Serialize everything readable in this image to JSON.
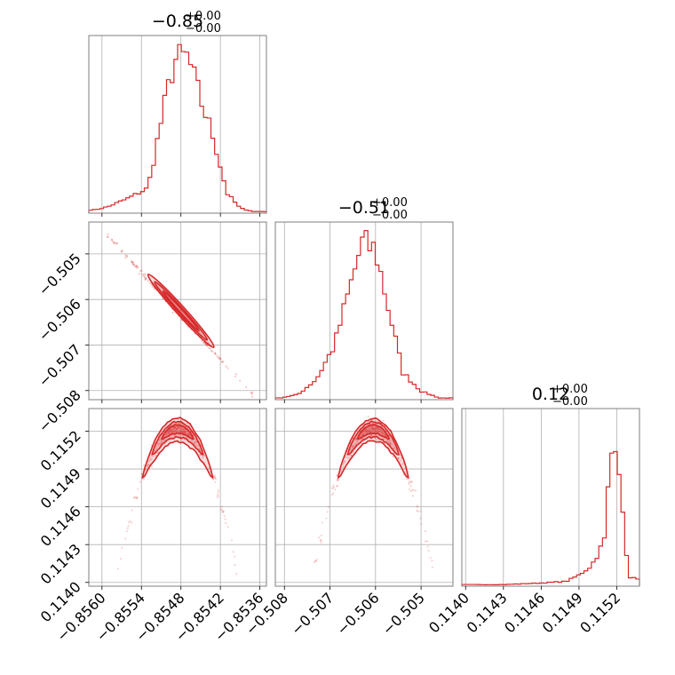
{
  "colors": {
    "series": "#d62728",
    "grid": "#b0b0b0",
    "frame": "#7f7f7f"
  },
  "chart_data": {
    "type": "corner",
    "grid": true,
    "parameters": [
      {
        "title_value": "−0.85",
        "title_plus": "+0.00",
        "title_minus": "−0.00",
        "range": [
          -0.8562,
          -0.8535
        ],
        "ticks": [
          -0.856,
          -0.8554,
          -0.8548,
          -0.8542,
          -0.8536
        ],
        "tick_labels": [
          "−0.8560",
          "−0.8554",
          "−0.8548",
          "−0.8542",
          "−0.8536"
        ]
      },
      {
        "title_value": "−0.51",
        "title_plus": "+0.00",
        "title_minus": "−0.00",
        "range": [
          -0.5082,
          -0.5043
        ],
        "ticks": [
          -0.505,
          -0.506,
          -0.507,
          -0.508
        ],
        "tick_labels": [
          "−0.505",
          "−0.506",
          "−0.507",
          "−0.508"
        ]
      },
      {
        "title_value": "0.12",
        "title_plus": "+0.00",
        "title_minus": "−0.00",
        "range": [
          0.11397,
          0.11538
        ],
        "ticks": [
          0.114,
          0.1143,
          0.1146,
          0.1149,
          0.1152
        ],
        "tick_labels": [
          "0.1140",
          "0.1143",
          "0.1146",
          "0.1149",
          "0.1152"
        ]
      }
    ],
    "histograms": [
      {
        "param": 0,
        "x": [
          -0.8561,
          -0.8559,
          -0.8556,
          -0.8553,
          -0.8551,
          -0.8549,
          -0.8547,
          -0.8545,
          -0.8543,
          -0.8541,
          -0.8539,
          -0.8537
        ],
        "y": [
          2,
          4,
          9,
          15,
          55,
          92,
          94,
          68,
          45,
          12,
          3,
          1
        ]
      },
      {
        "param": 1,
        "x": [
          -0.5081,
          -0.5077,
          -0.5073,
          -0.5069,
          -0.5066,
          -0.5063,
          -0.506,
          -0.5057,
          -0.5054,
          -0.505,
          -0.5046
        ],
        "y": [
          1,
          3,
          12,
          32,
          62,
          92,
          88,
          52,
          16,
          5,
          1
        ]
      },
      {
        "param": 2,
        "x": [
          0.114,
          0.1143,
          0.1146,
          0.1148,
          0.1149,
          0.115,
          0.1151,
          0.11515,
          0.1152,
          0.11525,
          0.1153
        ],
        "y": [
          1,
          1,
          2,
          3,
          7,
          13,
          28,
          80,
          98,
          40,
          5
        ]
      }
    ],
    "density_2d": [
      {
        "x_param": 0,
        "y_param": 1,
        "shape": "narrow diagonal ridge",
        "peak": [
          -0.8548,
          -0.50605
        ],
        "contours": 3
      },
      {
        "x_param": 0,
        "y_param": 2,
        "shape": "arched ridge",
        "peak": [
          -0.85485,
          0.11522
        ],
        "contours": 3
      },
      {
        "x_param": 1,
        "y_param": 2,
        "shape": "arched ridge",
        "peak": [
          -0.50605,
          0.11522
        ],
        "contours": 3
      }
    ]
  }
}
